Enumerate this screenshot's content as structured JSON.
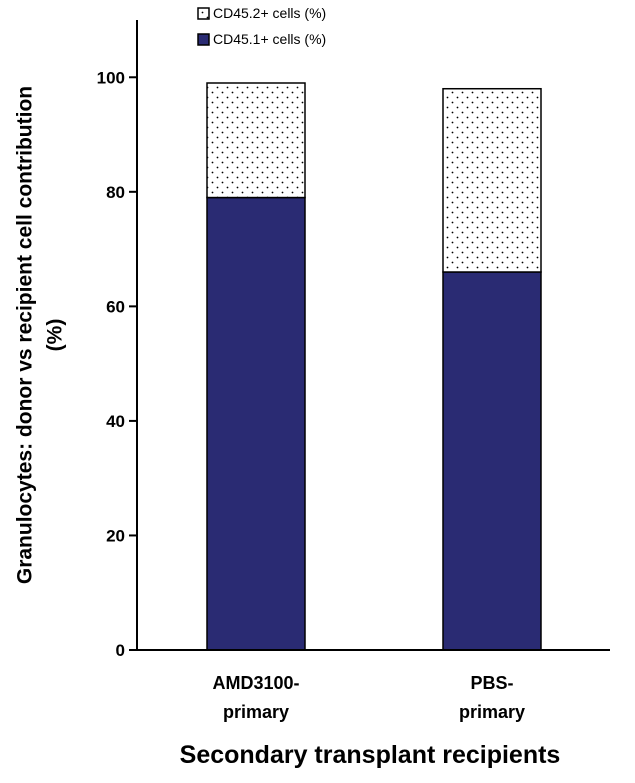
{
  "chart_data": {
    "type": "bar",
    "stacked": true,
    "title": "",
    "xlabel": "Secondary transplant recipients",
    "ylabel_lines": [
      "Granulocytes: donor vs recipient cell contribution",
      "(%)"
    ],
    "categories": [
      [
        "AMD3100-",
        "primary"
      ],
      [
        "PBS-",
        "primary"
      ]
    ],
    "series": [
      {
        "name": "CD45.1+ cells (%)",
        "values": [
          79,
          66
        ],
        "color": "#2a2b73",
        "pattern": "solid"
      },
      {
        "name": "CD45.2+ cells (%)",
        "values": [
          20,
          32
        ],
        "color": "#ffffff",
        "pattern": "dots"
      }
    ],
    "ylim": [
      0,
      110
    ],
    "yticks": [
      0,
      20,
      40,
      60,
      80,
      100
    ],
    "grid": false,
    "legend_position": "top-center"
  }
}
